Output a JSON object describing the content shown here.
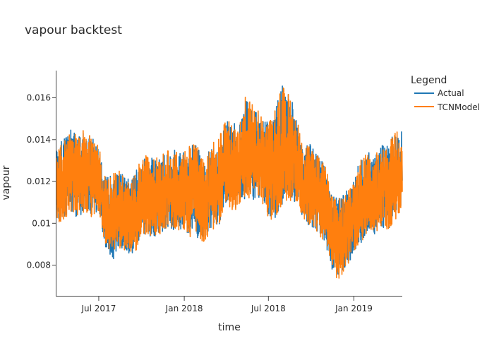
{
  "chart_data": {
    "type": "line",
    "title": "vapour backtest",
    "xlabel": "time",
    "ylabel": "vapour",
    "x_range": [
      "2017-04-01",
      "2019-04-15"
    ],
    "ylim": [
      0.0065,
      0.0173
    ],
    "x_ticks": [
      {
        "date": "2017-07-01",
        "label": "Jul 2017"
      },
      {
        "date": "2018-01-01",
        "label": "Jan 2018"
      },
      {
        "date": "2018-07-01",
        "label": "Jul 2018"
      },
      {
        "date": "2019-01-01",
        "label": "Jan 2019"
      }
    ],
    "y_ticks": [
      {
        "value": 0.008,
        "label": "0.008"
      },
      {
        "value": 0.01,
        "label": "0.01"
      },
      {
        "value": 0.012,
        "label": "0.012"
      },
      {
        "value": 0.014,
        "label": "0.014"
      },
      {
        "value": 0.016,
        "label": "0.016"
      }
    ],
    "grid": false,
    "legend": {
      "title": "Legend",
      "placement": "top-right"
    },
    "series": [
      {
        "name": "Actual",
        "color": "#1f77b4",
        "x": [
          "2017-04-01",
          "2017-04-15",
          "2017-05-01",
          "2017-05-15",
          "2017-06-01",
          "2017-06-15",
          "2017-07-01",
          "2017-07-15",
          "2017-08-01",
          "2017-08-15",
          "2017-09-01",
          "2017-09-15",
          "2017-10-01",
          "2017-10-15",
          "2017-11-01",
          "2017-11-15",
          "2017-12-01",
          "2017-12-15",
          "2018-01-01",
          "2018-01-15",
          "2018-02-01",
          "2018-02-15",
          "2018-03-01",
          "2018-03-15",
          "2018-04-01",
          "2018-04-15",
          "2018-05-01",
          "2018-05-15",
          "2018-06-01",
          "2018-06-15",
          "2018-07-01",
          "2018-07-15",
          "2018-08-01",
          "2018-08-15",
          "2018-09-01",
          "2018-09-15",
          "2018-10-01",
          "2018-10-15",
          "2018-11-01",
          "2018-11-15",
          "2018-12-01",
          "2018-12-15",
          "2019-01-01",
          "2019-01-15",
          "2019-02-01",
          "2019-02-15",
          "2019-03-01",
          "2019-03-15",
          "2019-04-01",
          "2019-04-15"
        ],
        "mid": [
          0.012,
          0.0121,
          0.0124,
          0.0123,
          0.0124,
          0.0122,
          0.0121,
          0.0104,
          0.0104,
          0.0106,
          0.0102,
          0.0103,
          0.011,
          0.0113,
          0.011,
          0.0114,
          0.0115,
          0.0114,
          0.0113,
          0.0116,
          0.0112,
          0.011,
          0.0117,
          0.0118,
          0.0128,
          0.0122,
          0.0126,
          0.0131,
          0.013,
          0.0129,
          0.0125,
          0.0125,
          0.0131,
          0.0134,
          0.0129,
          0.0118,
          0.0118,
          0.0114,
          0.011,
          0.0096,
          0.0093,
          0.0098,
          0.0103,
          0.011,
          0.0112,
          0.0113,
          0.0118,
          0.0117,
          0.012,
          0.0123
        ],
        "low": [
          0.0101,
          0.01,
          0.0105,
          0.0102,
          0.0106,
          0.0103,
          0.0106,
          0.0089,
          0.0082,
          0.0088,
          0.0086,
          0.0084,
          0.0095,
          0.0094,
          0.0093,
          0.0096,
          0.0098,
          0.0096,
          0.0097,
          0.0093,
          0.0092,
          0.0091,
          0.0097,
          0.0098,
          0.011,
          0.0106,
          0.0107,
          0.0113,
          0.011,
          0.0108,
          0.0103,
          0.01,
          0.011,
          0.0111,
          0.011,
          0.01,
          0.0098,
          0.0095,
          0.009,
          0.0078,
          0.0071,
          0.0079,
          0.0085,
          0.009,
          0.0097,
          0.0094,
          0.0099,
          0.0096,
          0.0102,
          0.0106
        ],
        "high": [
          0.0137,
          0.014,
          0.0145,
          0.0142,
          0.0146,
          0.0141,
          0.0138,
          0.0122,
          0.0124,
          0.0125,
          0.0121,
          0.0124,
          0.0133,
          0.0133,
          0.0131,
          0.0134,
          0.0135,
          0.0135,
          0.0134,
          0.0139,
          0.0136,
          0.0129,
          0.0139,
          0.014,
          0.015,
          0.0147,
          0.015,
          0.016,
          0.0155,
          0.0153,
          0.0148,
          0.0154,
          0.0167,
          0.0163,
          0.015,
          0.0137,
          0.0138,
          0.0134,
          0.0128,
          0.0113,
          0.0112,
          0.0115,
          0.0121,
          0.0131,
          0.0134,
          0.0132,
          0.0138,
          0.0137,
          0.0145,
          0.0144
        ]
      },
      {
        "name": "TCNModel",
        "color": "#ff7f0e",
        "x": [
          "2017-04-01",
          "2017-04-15",
          "2017-05-01",
          "2017-05-15",
          "2017-06-01",
          "2017-06-15",
          "2017-07-01",
          "2017-07-15",
          "2017-08-01",
          "2017-08-15",
          "2017-09-01",
          "2017-09-15",
          "2017-10-01",
          "2017-10-15",
          "2017-11-01",
          "2017-11-15",
          "2017-12-01",
          "2017-12-15",
          "2018-01-01",
          "2018-01-15",
          "2018-02-01",
          "2018-02-15",
          "2018-03-01",
          "2018-03-15",
          "2018-04-01",
          "2018-04-15",
          "2018-05-01",
          "2018-05-15",
          "2018-06-01",
          "2018-06-15",
          "2018-07-01",
          "2018-07-15",
          "2018-08-01",
          "2018-08-15",
          "2018-09-01",
          "2018-09-15",
          "2018-10-01",
          "2018-10-15",
          "2018-11-01",
          "2018-11-15",
          "2018-12-01",
          "2018-12-15",
          "2019-01-01",
          "2019-01-15",
          "2019-02-01",
          "2019-02-15",
          "2019-03-01",
          "2019-03-15",
          "2019-04-01",
          "2019-04-15"
        ],
        "mid": [
          0.012,
          0.0121,
          0.0124,
          0.0123,
          0.0124,
          0.0122,
          0.0121,
          0.0104,
          0.0104,
          0.0106,
          0.0102,
          0.0103,
          0.011,
          0.0113,
          0.011,
          0.0114,
          0.0115,
          0.0114,
          0.0113,
          0.0116,
          0.0112,
          0.011,
          0.0117,
          0.0118,
          0.0128,
          0.0122,
          0.0126,
          0.0131,
          0.013,
          0.0129,
          0.0125,
          0.0125,
          0.0131,
          0.0134,
          0.0129,
          0.0118,
          0.0118,
          0.0114,
          0.011,
          0.0096,
          0.0093,
          0.0098,
          0.0103,
          0.011,
          0.0112,
          0.0113,
          0.0118,
          0.0117,
          0.012,
          0.0123
        ],
        "low": [
          0.0101,
          0.01,
          0.0105,
          0.0102,
          0.0106,
          0.0103,
          0.0106,
          0.0089,
          0.0084,
          0.0088,
          0.0086,
          0.0084,
          0.0095,
          0.0094,
          0.0093,
          0.0096,
          0.0098,
          0.0096,
          0.0097,
          0.0093,
          0.0092,
          0.0091,
          0.0097,
          0.0098,
          0.011,
          0.0106,
          0.0107,
          0.0113,
          0.011,
          0.0108,
          0.0103,
          0.01,
          0.011,
          0.0111,
          0.011,
          0.01,
          0.0098,
          0.0095,
          0.009,
          0.0078,
          0.0071,
          0.0079,
          0.0085,
          0.009,
          0.0097,
          0.0094,
          0.0099,
          0.0096,
          0.0102,
          0.0106
        ],
        "high": [
          0.0137,
          0.014,
          0.0146,
          0.0142,
          0.0146,
          0.0141,
          0.0138,
          0.0122,
          0.0124,
          0.0125,
          0.0121,
          0.0124,
          0.0133,
          0.0133,
          0.0131,
          0.0134,
          0.0135,
          0.0135,
          0.0134,
          0.0139,
          0.0136,
          0.0129,
          0.0139,
          0.014,
          0.015,
          0.0147,
          0.015,
          0.0163,
          0.0155,
          0.0153,
          0.0148,
          0.0154,
          0.0167,
          0.0163,
          0.015,
          0.0137,
          0.0138,
          0.0134,
          0.0128,
          0.0113,
          0.0112,
          0.0115,
          0.0121,
          0.0131,
          0.0134,
          0.0132,
          0.0138,
          0.0137,
          0.0145,
          0.0144
        ]
      }
    ]
  }
}
